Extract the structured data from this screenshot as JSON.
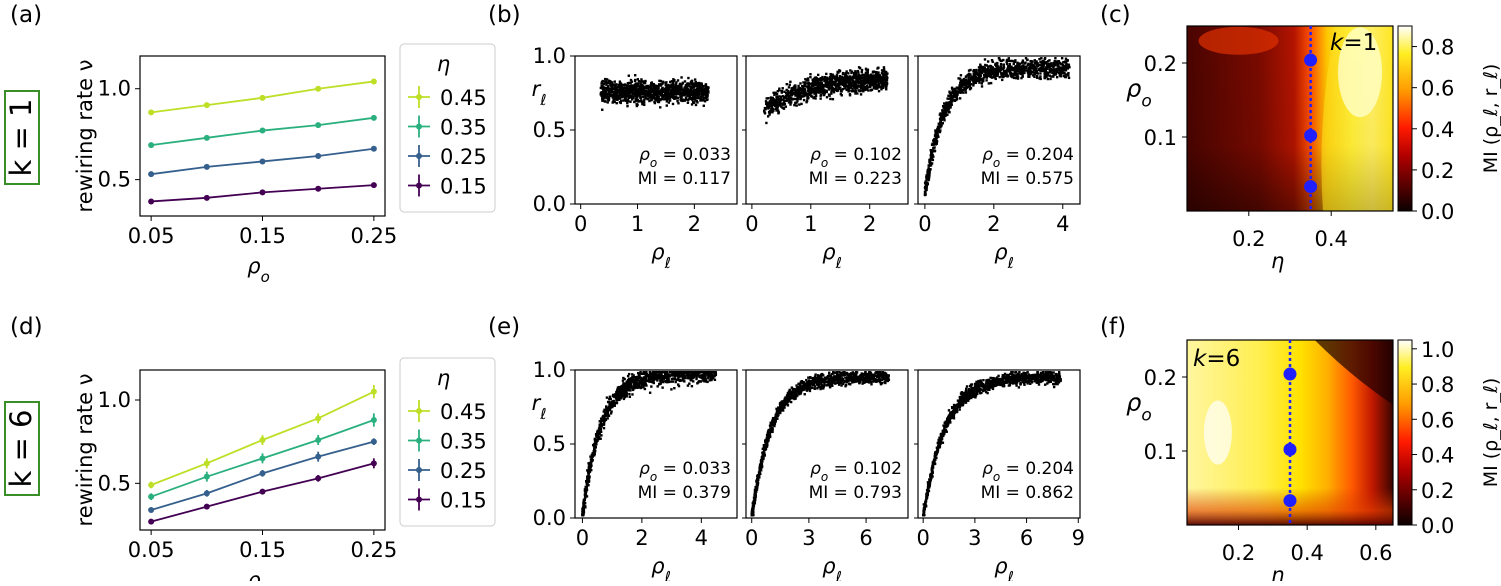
{
  "colors": {
    "eta_045": "#bddf26",
    "eta_035": "#2ab07f",
    "eta_025": "#355f8d",
    "eta_015": "#440154",
    "k_box": "#3a8e28",
    "marker": "#1f1fff",
    "scatter": "#000000"
  },
  "row_labels": [
    "k = 1",
    "k = 6"
  ],
  "panel_labels": [
    "(a)",
    "(b)",
    "(c)",
    "(d)",
    "(e)",
    "(f)"
  ],
  "chart_data": [
    {
      "panel": "(a)",
      "type": "line",
      "xlabel": "ρ_o",
      "ylabel": "rewiring rate ν",
      "x": [
        0.05,
        0.1,
        0.15,
        0.2,
        0.25
      ],
      "xticks": [
        "0.05",
        "0.15",
        "0.25"
      ],
      "yticks": [
        "0.5",
        "1.0"
      ],
      "xlim": [
        0.04,
        0.26
      ],
      "ylim": [
        0.3,
        1.18
      ],
      "legend_title": "η",
      "legend_position": "right",
      "series": [
        {
          "name": "0.45",
          "values": [
            0.87,
            0.91,
            0.95,
            1.0,
            1.04
          ],
          "err": [
            0.01,
            0.01,
            0.01,
            0.01,
            0.01
          ]
        },
        {
          "name": "0.35",
          "values": [
            0.69,
            0.73,
            0.77,
            0.8,
            0.84
          ],
          "err": [
            0.01,
            0.01,
            0.01,
            0.01,
            0.01
          ]
        },
        {
          "name": "0.25",
          "values": [
            0.53,
            0.57,
            0.6,
            0.63,
            0.67
          ],
          "err": [
            0.01,
            0.01,
            0.01,
            0.01,
            0.01
          ]
        },
        {
          "name": "0.15",
          "values": [
            0.38,
            0.4,
            0.43,
            0.45,
            0.47
          ],
          "err": [
            0.01,
            0.01,
            0.01,
            0.01,
            0.01
          ]
        }
      ]
    },
    {
      "panel": "(b)",
      "type": "scatter",
      "ylabel": "r_ℓ",
      "yticks": [
        "0.0",
        "0.5",
        "1.0"
      ],
      "ylim": [
        0,
        1
      ],
      "subplots": [
        {
          "xlabel": "ρ_ℓ",
          "xticks": [
            "0",
            "1",
            "2"
          ],
          "xlim": [
            -0.1,
            2.75
          ],
          "annotation": [
            "ρ_o = 0.033",
            "MI = 0.117"
          ]
        },
        {
          "xlabel": "ρ_ℓ",
          "xticks": [
            "0",
            "1",
            "2"
          ],
          "xlim": [
            -0.1,
            2.65
          ],
          "annotation": [
            "ρ_o = 0.102",
            "MI = 0.223"
          ]
        },
        {
          "xlabel": "ρ_ℓ",
          "xticks": [
            "0",
            "2",
            "4"
          ],
          "xlim": [
            -0.2,
            4.5
          ],
          "annotation": [
            "ρ_o = 0.204",
            "MI = 0.575"
          ]
        }
      ]
    },
    {
      "panel": "(c)",
      "type": "heatmap",
      "xlabel": "η",
      "ylabel": "ρ_o",
      "xticks": [
        "0.2",
        "0.4"
      ],
      "yticks": [
        "0.1",
        "0.2"
      ],
      "xlim": [
        0.05,
        0.55
      ],
      "ylim": [
        0.0,
        0.25
      ],
      "tag": "k=1",
      "colorbar_label": "MI (ρ_ℓ, r_ℓ)",
      "colorbar_ticks": [
        "0.0",
        "0.2",
        "0.4",
        "0.6",
        "0.8"
      ],
      "colorbar_range": [
        0,
        0.9
      ],
      "marker_eta": 0.35,
      "markers_rho": [
        0.033,
        0.102,
        0.204
      ]
    },
    {
      "panel": "(d)",
      "type": "line",
      "xlabel": "ρ_o",
      "ylabel": "rewiring rate ν",
      "x": [
        0.05,
        0.1,
        0.15,
        0.2,
        0.25
      ],
      "xticks": [
        "0.05",
        "0.15",
        "0.25"
      ],
      "yticks": [
        "0.5",
        "1.0"
      ],
      "xlim": [
        0.04,
        0.26
      ],
      "ylim": [
        0.22,
        1.18
      ],
      "legend_title": "η",
      "legend_position": "right",
      "series": [
        {
          "name": "0.45",
          "values": [
            0.49,
            0.62,
            0.76,
            0.89,
            1.05
          ],
          "err": [
            0.02,
            0.03,
            0.03,
            0.03,
            0.04
          ]
        },
        {
          "name": "0.35",
          "values": [
            0.42,
            0.54,
            0.65,
            0.76,
            0.88
          ],
          "err": [
            0.02,
            0.03,
            0.03,
            0.03,
            0.04
          ]
        },
        {
          "name": "0.25",
          "values": [
            0.34,
            0.44,
            0.56,
            0.66,
            0.75
          ],
          "err": [
            0.01,
            0.02,
            0.02,
            0.03,
            0.02
          ]
        },
        {
          "name": "0.15",
          "values": [
            0.27,
            0.36,
            0.45,
            0.53,
            0.62
          ],
          "err": [
            0.01,
            0.01,
            0.01,
            0.02,
            0.03
          ]
        }
      ]
    },
    {
      "panel": "(e)",
      "type": "scatter",
      "ylabel": "r_ℓ",
      "yticks": [
        "0.0",
        "0.5",
        "1.0"
      ],
      "ylim": [
        0,
        1
      ],
      "subplots": [
        {
          "xlabel": "ρ_ℓ",
          "xticks": [
            "0",
            "2",
            "4"
          ],
          "xlim": [
            -0.25,
            5.2
          ],
          "annotation": [
            "ρ_o = 0.033",
            "MI = 0.379"
          ]
        },
        {
          "xlabel": "ρ_ℓ",
          "xticks": [
            "0",
            "3",
            "6"
          ],
          "xlim": [
            -0.3,
            8.2
          ],
          "annotation": [
            "ρ_o = 0.102",
            "MI = 0.793"
          ]
        },
        {
          "xlabel": "ρ_ℓ",
          "xticks": [
            "0",
            "3",
            "6",
            "9"
          ],
          "xlim": [
            -0.3,
            9.1
          ],
          "annotation": [
            "ρ_o = 0.204",
            "MI = 0.862"
          ]
        }
      ]
    },
    {
      "panel": "(f)",
      "type": "heatmap",
      "xlabel": "η",
      "ylabel": "ρ_o",
      "xticks": [
        "0.2",
        "0.4",
        "0.6"
      ],
      "yticks": [
        "0.1",
        "0.2"
      ],
      "xlim": [
        0.05,
        0.65
      ],
      "ylim": [
        0.0,
        0.25
      ],
      "tag": "k=6",
      "colorbar_label": "MI (ρ_ℓ, r_ℓ)",
      "colorbar_ticks": [
        "0.0",
        "0.2",
        "0.4",
        "0.6",
        "0.8",
        "1.0"
      ],
      "colorbar_range": [
        0,
        1.05
      ],
      "marker_eta": 0.35,
      "markers_rho": [
        0.033,
        0.102,
        0.204
      ]
    }
  ]
}
